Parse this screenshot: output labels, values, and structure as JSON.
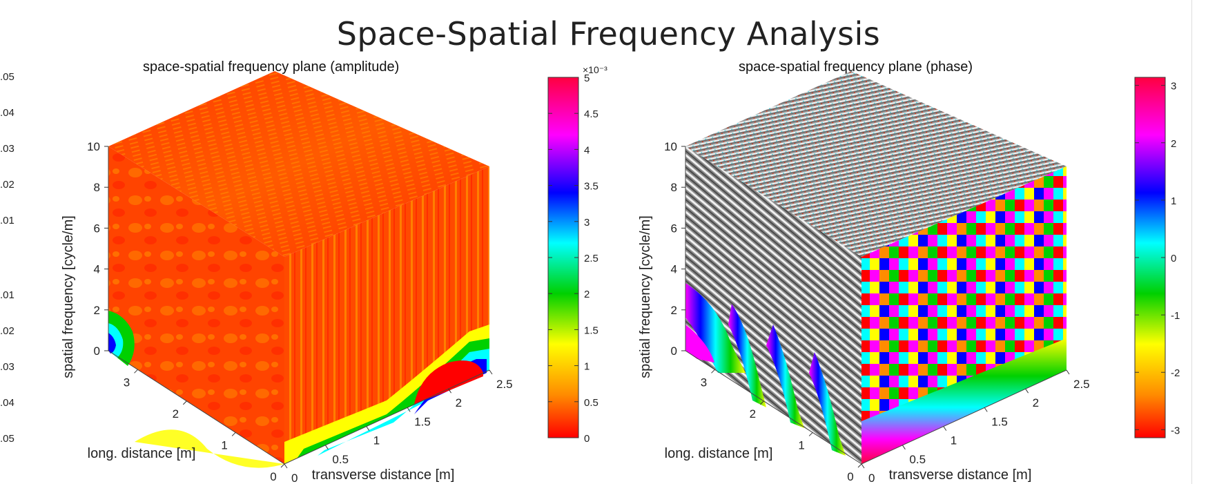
{
  "title": "Space-Spatial Frequency Analysis",
  "edge_ticks": [
    ".05",
    ".04",
    ".03",
    ".02",
    ".01",
    ".01",
    ".02",
    ".03",
    ".04",
    ".05"
  ],
  "colors": {
    "text": "#111111",
    "axis": "#222222",
    "accent_red": "#ff2a00",
    "cyan": "#23d7e6"
  },
  "chart_data": [
    {
      "type": "heatmap",
      "title": "space-spatial frequency plane (amplitude)",
      "xlabel": "transverse distance [m]",
      "ylabel": "long. distance [m]",
      "zlabel": "spatial frequency [cycle/m]",
      "x_ticks": [
        "0",
        "0.5",
        "1",
        "1.5",
        "2",
        "2.5"
      ],
      "y_ticks": [
        "0",
        "1",
        "2",
        "3"
      ],
      "z_ticks": [
        "0",
        "2",
        "4",
        "6",
        "8",
        "10"
      ],
      "xlim": [
        0,
        2.5
      ],
      "ylim": [
        0,
        3.6
      ],
      "zlim": [
        0,
        10
      ],
      "colorbar": {
        "ticks": [
          "0",
          "0.5",
          "1",
          "1.5",
          "2",
          "2.5",
          "3",
          "3.5",
          "4",
          "4.5",
          "5"
        ],
        "exponent": "×10⁻³",
        "range": [
          0,
          0.005
        ],
        "colormap": [
          "#ff0000",
          "#ff8c00",
          "#ffff00",
          "#00d000",
          "#00ffff",
          "#0000ff",
          "#ff00ff",
          "#ff0040"
        ]
      }
    },
    {
      "type": "heatmap",
      "title": "space-spatial frequency plane (phase)",
      "xlabel": "transverse distance [m]",
      "ylabel": "long. distance [m]",
      "zlabel": "spatial frequency [cycle/m]",
      "x_ticks": [
        "0",
        "0.5",
        "1",
        "1.5",
        "2",
        "2.5"
      ],
      "y_ticks": [
        "0",
        "1",
        "2",
        "3"
      ],
      "z_ticks": [
        "0",
        "2",
        "4",
        "6",
        "8",
        "10"
      ],
      "xlim": [
        0,
        2.5
      ],
      "ylim": [
        0,
        3.6
      ],
      "zlim": [
        0,
        10
      ],
      "colorbar": {
        "ticks": [
          "-3",
          "-2",
          "-1",
          "0",
          "1",
          "2",
          "3"
        ],
        "range": [
          -3.14,
          3.14
        ],
        "colormap": [
          "#ff0000",
          "#ff8c00",
          "#ffff00",
          "#00d000",
          "#00ffff",
          "#0000ff",
          "#ff00ff",
          "#ff0040"
        ]
      }
    }
  ]
}
